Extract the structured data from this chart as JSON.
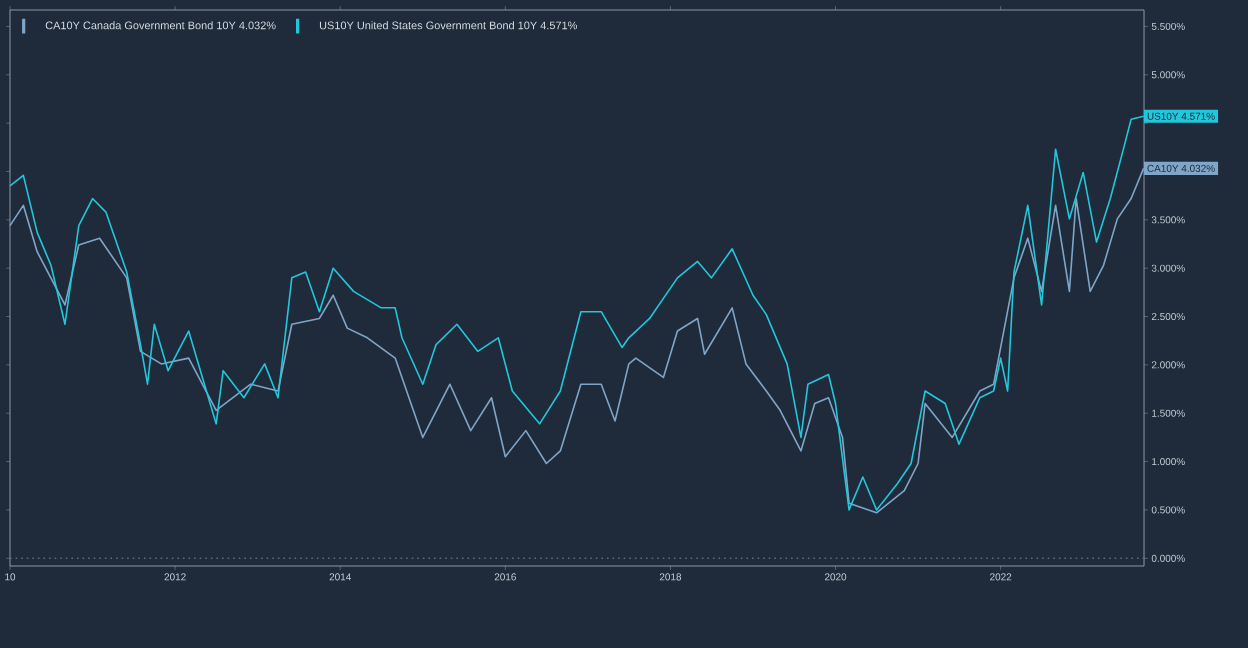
{
  "chart_data": {
    "type": "line",
    "series": [
      {
        "name": "CA10Y Canada Government Bond 10Y 4.032%",
        "color": "#7fa6c9",
        "x": [
          "2010-01",
          "2010-03",
          "2010-05",
          "2010-09",
          "2010-11",
          "2011-02",
          "2011-06",
          "2011-08",
          "2011-11",
          "2012-03",
          "2012-07",
          "2012-12",
          "2013-04",
          "2013-06",
          "2013-10",
          "2013-12",
          "2014-02",
          "2014-05",
          "2014-09",
          "2015-01",
          "2015-05",
          "2015-08",
          "2015-11",
          "2016-01",
          "2016-04",
          "2016-07",
          "2016-09",
          "2016-12",
          "2017-03",
          "2017-05",
          "2017-07",
          "2017-08",
          "2017-12",
          "2018-02",
          "2018-05",
          "2018-06",
          "2018-10",
          "2018-12",
          "2019-03",
          "2019-05",
          "2019-08",
          "2019-10",
          "2019-12",
          "2020-02",
          "2020-03",
          "2020-07",
          "2020-11",
          "2021-01",
          "2021-02",
          "2021-06",
          "2021-10",
          "2021-12",
          "2022-03",
          "2022-05",
          "2022-07",
          "2022-09",
          "2022-11",
          "2022-12",
          "2023-02",
          "2023-04",
          "2023-06",
          "2023-08",
          "2023-09-25"
        ],
        "values": [
          3.44,
          3.65,
          3.17,
          2.62,
          3.24,
          3.31,
          2.9,
          2.14,
          2.01,
          2.07,
          1.53,
          1.8,
          1.73,
          2.42,
          2.48,
          2.72,
          2.38,
          2.28,
          2.07,
          1.25,
          1.8,
          1.32,
          1.66,
          1.05,
          1.32,
          0.98,
          1.11,
          1.8,
          1.8,
          1.42,
          2.01,
          2.07,
          1.87,
          2.35,
          2.48,
          2.11,
          2.59,
          2.01,
          1.73,
          1.53,
          1.11,
          1.6,
          1.66,
          1.25,
          0.57,
          0.47,
          0.7,
          0.98,
          1.6,
          1.25,
          1.73,
          1.8,
          2.9,
          3.31,
          2.76,
          3.65,
          2.76,
          3.72,
          2.76,
          3.03,
          3.51,
          3.72,
          4.032
        ]
      },
      {
        "name": "US10Y United States Government Bond 10Y 4.571%",
        "color": "#22c7dc",
        "x": [
          "2010-01",
          "2010-03",
          "2010-05",
          "2010-07",
          "2010-09",
          "2010-11",
          "2011-01",
          "2011-03",
          "2011-06",
          "2011-08",
          "2011-09",
          "2011-10",
          "2011-12",
          "2012-03",
          "2012-05",
          "2012-07",
          "2012-08",
          "2012-11",
          "2013-02",
          "2013-04",
          "2013-06",
          "2013-08",
          "2013-10",
          "2013-12",
          "2014-03",
          "2014-07",
          "2014-09",
          "2014-10",
          "2015-01",
          "2015-03",
          "2015-06",
          "2015-09",
          "2015-12",
          "2016-02",
          "2016-06",
          "2016-09",
          "2016-12",
          "2017-03",
          "2017-06",
          "2017-07",
          "2017-10",
          "2018-02",
          "2018-05",
          "2018-07",
          "2018-10",
          "2019-01",
          "2019-03",
          "2019-06",
          "2019-08",
          "2019-09",
          "2019-12",
          "2020-01",
          "2020-03",
          "2020-05",
          "2020-07",
          "2020-10",
          "2020-12",
          "2021-02",
          "2021-05",
          "2021-07",
          "2021-10",
          "2021-12",
          "2022-01",
          "2022-02",
          "2022-03",
          "2022-05",
          "2022-07",
          "2022-09",
          "2022-11",
          "2023-01",
          "2023-03",
          "2023-05",
          "2023-07",
          "2023-08",
          "2023-09-25"
        ],
        "values": [
          3.85,
          3.96,
          3.37,
          3.03,
          2.42,
          3.44,
          3.72,
          3.58,
          2.96,
          2.21,
          1.8,
          2.42,
          1.94,
          2.35,
          1.87,
          1.39,
          1.94,
          1.66,
          2.01,
          1.66,
          2.9,
          2.96,
          2.55,
          3.0,
          2.76,
          2.59,
          2.59,
          2.28,
          1.8,
          2.21,
          2.42,
          2.14,
          2.28,
          1.73,
          1.39,
          1.73,
          2.55,
          2.55,
          2.18,
          2.28,
          2.48,
          2.9,
          3.07,
          2.9,
          3.2,
          2.72,
          2.52,
          2.01,
          1.25,
          1.8,
          1.9,
          1.6,
          0.5,
          0.84,
          0.5,
          0.77,
          0.98,
          1.73,
          1.6,
          1.18,
          1.66,
          1.73,
          2.07,
          1.73,
          2.96,
          3.65,
          2.62,
          4.23,
          3.51,
          3.99,
          3.27,
          3.72,
          4.26,
          4.54,
          4.571
        ]
      }
    ],
    "xlim": [
      "2010-01-01",
      "2023-09-27"
    ],
    "xticks": [
      {
        "value": "2010-01-01",
        "label": "10"
      },
      {
        "value": "2012-01-01",
        "label": "2012"
      },
      {
        "value": "2014-01-01",
        "label": "2014"
      },
      {
        "value": "2016-01-01",
        "label": "2016"
      },
      {
        "value": "2018-01-01",
        "label": "2018"
      },
      {
        "value": "2020-01-01",
        "label": "2020"
      },
      {
        "value": "2022-01-01",
        "label": "2022"
      }
    ],
    "ylim": [
      -0.08,
      5.67
    ],
    "yticks": [
      {
        "value": 0,
        "label": "0.000%"
      },
      {
        "value": 0.5,
        "label": "0.500%"
      },
      {
        "value": 1,
        "label": "1.000%"
      },
      {
        "value": 1.5,
        "label": "1.500%"
      },
      {
        "value": 2,
        "label": "2.000%"
      },
      {
        "value": 2.5,
        "label": "2.500%"
      },
      {
        "value": 3,
        "label": "3.000%"
      },
      {
        "value": 3.5,
        "label": "3.500%"
      },
      {
        "value": 4,
        "label": null
      },
      {
        "value": 4.5,
        "label": null
      },
      {
        "value": 5,
        "label": "5.000%"
      },
      {
        "value": 5.5,
        "label": "5.500%"
      }
    ],
    "ref_lines": [
      {
        "axis": "y",
        "value": 0,
        "line_style": "dotted",
        "color": "#5d6b7a"
      }
    ],
    "annotations": [
      {
        "text": "CA10Y 4.032%",
        "x": "2023-09-25",
        "y": 4.032
      },
      {
        "text": "US10Y 4.571%",
        "x": "2023-09-25",
        "y": 4.571
      }
    ],
    "legend": "top left",
    "grid": false,
    "marker": "none",
    "line_style": "solid"
  }
}
